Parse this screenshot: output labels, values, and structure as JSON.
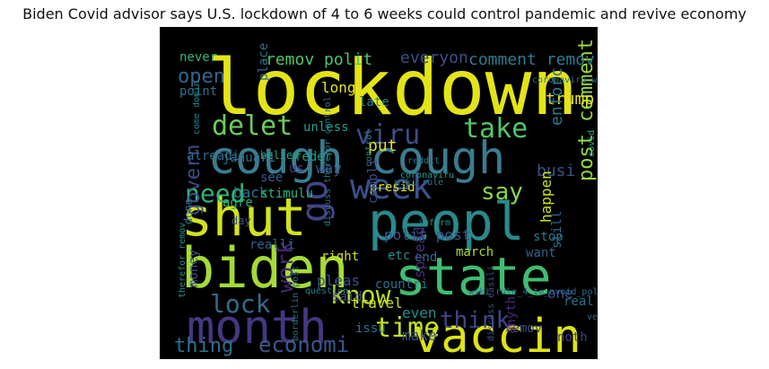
{
  "title": "Biden Covid advisor says U.S. lockdown of 4 to 6 weeks could control pandemic and revive economy",
  "words": [
    {
      "text": "lockdown",
      "color": "#e3e418"
    },
    {
      "text": "cough cough",
      "color": "#3b7c8e"
    },
    {
      "text": "peopl",
      "color": "#2a8a8c"
    },
    {
      "text": "state",
      "color": "#3fbc73"
    },
    {
      "text": "biden",
      "color": "#a5db36"
    },
    {
      "text": "shut",
      "color": "#d2e21b"
    },
    {
      "text": "month",
      "color": "#453781"
    },
    {
      "text": "vaccin",
      "color": "#dde318"
    },
    {
      "text": "week",
      "color": "#3b518b"
    },
    {
      "text": "go",
      "color": "#414487"
    },
    {
      "text": "delet",
      "color": "#6ccd5a"
    },
    {
      "text": "viru",
      "color": "#3e4c8a"
    },
    {
      "text": "take",
      "color": "#52c569"
    },
    {
      "text": "need",
      "color": "#30b47c"
    },
    {
      "text": "say",
      "color": "#86d549"
    },
    {
      "text": "post comment",
      "color": "#95d840"
    },
    {
      "text": "time",
      "color": "#c2df23"
    },
    {
      "text": "know",
      "color": "#b8de29"
    },
    {
      "text": "lock",
      "color": "#2f6c8e"
    },
    {
      "text": "work",
      "color": "#482677"
    },
    {
      "text": "think",
      "color": "#404688"
    },
    {
      "text": "thing",
      "color": "#2d708e"
    },
    {
      "text": "economi",
      "color": "#38588c"
    },
    {
      "text": "open",
      "color": "#31668e"
    },
    {
      "text": "govern",
      "color": "#3e4a89"
    },
    {
      "text": "remov polit",
      "color": "#50c46a"
    },
    {
      "text": "everyon",
      "color": "#3c508b"
    },
    {
      "text": "comment remov",
      "color": "#287d8e"
    },
    {
      "text": "never",
      "color": "#35b779"
    },
    {
      "text": "point",
      "color": "#2c728e"
    },
    {
      "text": "place",
      "color": "#2d718e"
    },
    {
      "text": "long",
      "color": "#e7e419"
    },
    {
      "text": "trump",
      "color": "#e5e419"
    },
    {
      "text": "unless",
      "color": "#1fa187"
    },
    {
      "text": "late",
      "color": "#25858e"
    },
    {
      "text": "januari",
      "color": "#2c738e"
    },
    {
      "text": "feder",
      "color": "#1e9c89"
    },
    {
      "text": "enforc",
      "color": "#2a778e"
    },
    {
      "text": "alreadi",
      "color": "#2d6f8e"
    },
    {
      "text": "put",
      "color": "#e3e418"
    },
    {
      "text": "busi",
      "color": "#3b528b"
    },
    {
      "text": "see",
      "color": "#355e8d"
    },
    {
      "text": "us",
      "color": "#453882"
    },
    {
      "text": "way",
      "color": "#3a548c"
    },
    {
      "text": "believ",
      "color": "#22a785"
    },
    {
      "text": "back",
      "color": "#2a788e"
    },
    {
      "text": "stimulu",
      "color": "#2db27d"
    },
    {
      "text": "presid",
      "color": "#d8e219"
    },
    {
      "text": "happen",
      "color": "#cae11f"
    },
    {
      "text": "compli",
      "color": "#3b528b"
    },
    {
      "text": "done",
      "color": "#2c738e"
    },
    {
      "text": "day",
      "color": "#3b518b"
    },
    {
      "text": "realli",
      "color": "#34618d"
    },
    {
      "text": "right",
      "color": "#d0e11c"
    },
    {
      "text": "etc",
      "color": "#21918c"
    },
    {
      "text": "end",
      "color": "#2e6e8e"
    },
    {
      "text": "polit post",
      "color": "#3a548c"
    },
    {
      "text": "stop",
      "color": "#29798e"
    },
    {
      "text": "still",
      "color": "#2e6d8e"
    },
    {
      "text": "march",
      "color": "#aadc32"
    },
    {
      "text": "want",
      "color": "#33638d"
    },
    {
      "text": "pleas",
      "color": "#3c4f8a"
    },
    {
      "text": "said",
      "color": "#3e4989"
    },
    {
      "text": "countri",
      "color": "#2c728e"
    },
    {
      "text": "spread",
      "color": "#472c7a"
    },
    {
      "text": "one",
      "color": "#3b518b"
    },
    {
      "text": "real",
      "color": "#2c718e"
    },
    {
      "text": "money",
      "color": "#3b528b"
    },
    {
      "text": "travel",
      "color": "#c5e021"
    },
    {
      "text": "even",
      "color": "#228c8d"
    },
    {
      "text": "make",
      "color": "#3b518b"
    },
    {
      "text": "issu",
      "color": "#2b758e"
    },
    {
      "text": "remov",
      "color": "#3e4a89"
    },
    {
      "text": "noth",
      "color": "#433e85"
    },
    {
      "text": "anyth",
      "color": "#482878"
    },
    {
      "text": "agre",
      "color": "#29af7f"
    },
    {
      "text": "inform",
      "color": "#21918c"
    },
    {
      "text": "coronaviru",
      "color": "#1fa088"
    },
    {
      "text": "reddit",
      "color": "#2a788e"
    },
    {
      "text": "wiki rule",
      "color": "#2c738e"
    },
    {
      "text": "control",
      "color": "#26818e"
    },
    {
      "text": "covid",
      "color": "#25ac82"
    },
    {
      "text": "discuss therefor control",
      "color": "#2a788e"
    },
    {
      "text": "therefor remov",
      "color": "#21918c"
    },
    {
      "text": "borderlin post",
      "color": "#2c718e"
    },
    {
      "text": "question",
      "color": "#287c8e"
    },
    {
      "text": "discuss easili",
      "color": "#3c508b"
    },
    {
      "text": "come domin",
      "color": "#26828e"
    },
    {
      "text": "wiki rule_4_to_avoid_polit",
      "color": "#2e6d8e"
    },
    {
      "text": "ve",
      "color": "#31688e"
    },
    {
      "text": "coronaviru wiki",
      "color": "#2d708e"
    }
  ]
}
